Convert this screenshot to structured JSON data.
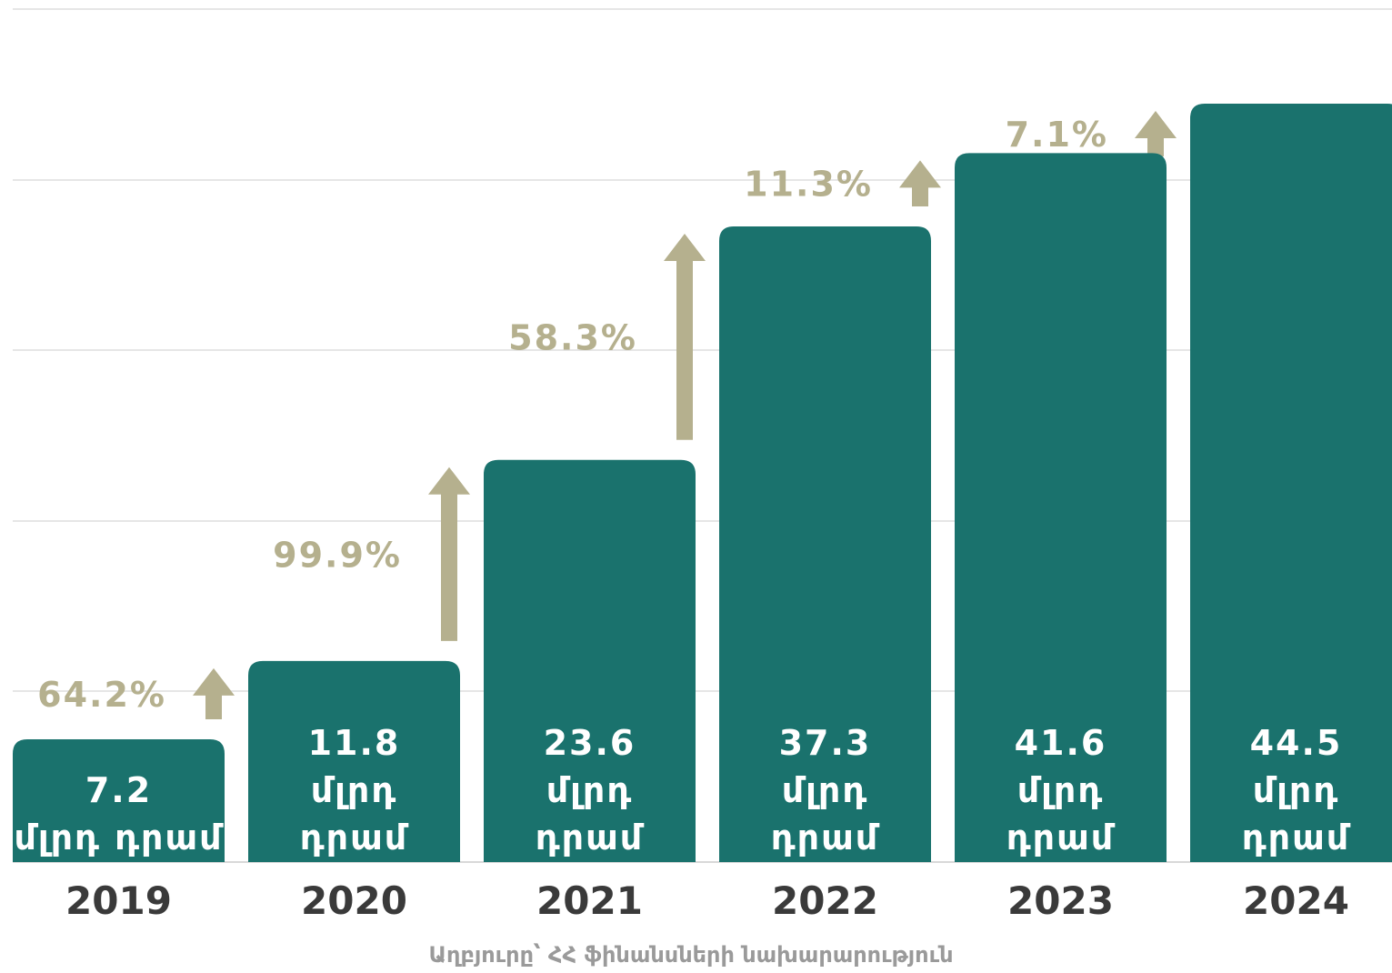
{
  "chart_data": {
    "type": "bar",
    "categories": [
      "2019",
      "2020",
      "2021",
      "2022",
      "2023",
      "2024"
    ],
    "values": [
      7.2,
      11.8,
      23.6,
      37.3,
      41.6,
      44.5
    ],
    "value_labels": [
      [
        "7.2",
        "մլրդ դրամ"
      ],
      [
        "11.8",
        "մլրդ",
        "դրամ"
      ],
      [
        "23.6",
        "մլրդ",
        "դրամ"
      ],
      [
        "37.3",
        "մլրդ",
        "դրամ"
      ],
      [
        "41.6",
        "մլրդ",
        "դրամ"
      ],
      [
        "44.5",
        "մլրդ",
        "դրամ"
      ]
    ],
    "growth": [
      "64.2%",
      "99.9%",
      "58.3%",
      "11.3%",
      "7.1%"
    ],
    "grid": true,
    "colors": {
      "bar": "#1a726d",
      "arrow": "#b5b08e",
      "year": "#3a3a3a",
      "gridline": "#dddddd"
    }
  },
  "source": "Աղբյուրը՝ ՀՀ ֆինանսների նախարարություն"
}
